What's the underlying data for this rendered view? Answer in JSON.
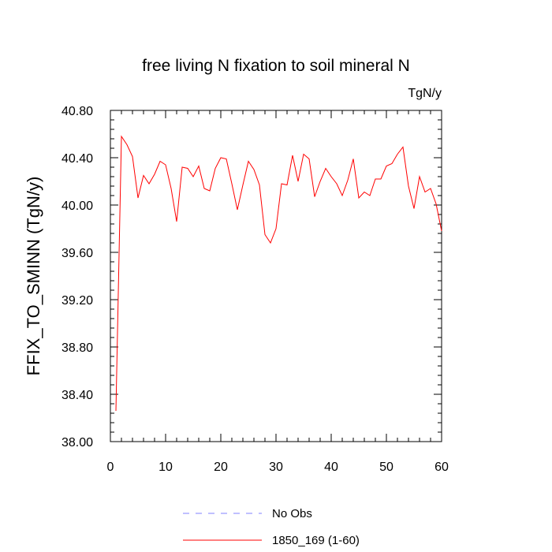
{
  "chart_data": {
    "type": "line",
    "title": "free living N fixation to soil mineral N",
    "units": "TgN/y",
    "xlabel": "",
    "ylabel": "FFIX_TO_SMINN  (TgN/y)",
    "xlim": [
      0,
      60
    ],
    "ylim": [
      38.0,
      40.8
    ],
    "xticks": [
      0,
      10,
      20,
      30,
      40,
      50,
      60
    ],
    "xtick_labels": [
      "0",
      "10",
      "20",
      "30",
      "40",
      "50",
      "60"
    ],
    "yticks": [
      38.0,
      38.4,
      38.8,
      39.2,
      39.6,
      40.0,
      40.4,
      40.8
    ],
    "ytick_labels": [
      "38.00",
      "38.40",
      "38.80",
      "39.20",
      "39.60",
      "40.00",
      "40.40",
      "40.80"
    ],
    "grid": false,
    "legend_position": "bottom-center",
    "series": [
      {
        "name": "No Obs",
        "color": "#8080ff",
        "style": "dashed",
        "x": [],
        "values": []
      },
      {
        "name": "1850_169 (1-60)",
        "color": "#ff0000",
        "style": "solid",
        "x": [
          1,
          2,
          3,
          4,
          5,
          6,
          7,
          8,
          9,
          10,
          11,
          12,
          13,
          14,
          15,
          16,
          17,
          18,
          19,
          20,
          21,
          22,
          23,
          24,
          25,
          26,
          27,
          28,
          29,
          30,
          31,
          32,
          33,
          34,
          35,
          36,
          37,
          38,
          39,
          40,
          41,
          42,
          43,
          44,
          45,
          46,
          47,
          48,
          49,
          50,
          51,
          52,
          53,
          54,
          55,
          56,
          57,
          58,
          59,
          60
        ],
        "values": [
          38.26,
          40.58,
          40.51,
          40.41,
          40.06,
          40.25,
          40.18,
          40.26,
          40.37,
          40.34,
          40.14,
          39.86,
          40.32,
          40.31,
          40.24,
          40.33,
          40.14,
          40.12,
          40.31,
          40.4,
          40.39,
          40.18,
          39.96,
          40.17,
          40.37,
          40.3,
          40.17,
          39.75,
          39.68,
          39.8,
          40.18,
          40.17,
          40.42,
          40.2,
          40.43,
          40.39,
          40.07,
          40.2,
          40.31,
          40.24,
          40.18,
          40.08,
          40.21,
          40.39,
          40.06,
          40.11,
          40.08,
          40.22,
          40.22,
          40.33,
          40.35,
          40.43,
          40.49,
          40.16,
          39.97,
          40.24,
          40.11,
          40.14,
          40.01,
          39.78
        ]
      }
    ]
  }
}
